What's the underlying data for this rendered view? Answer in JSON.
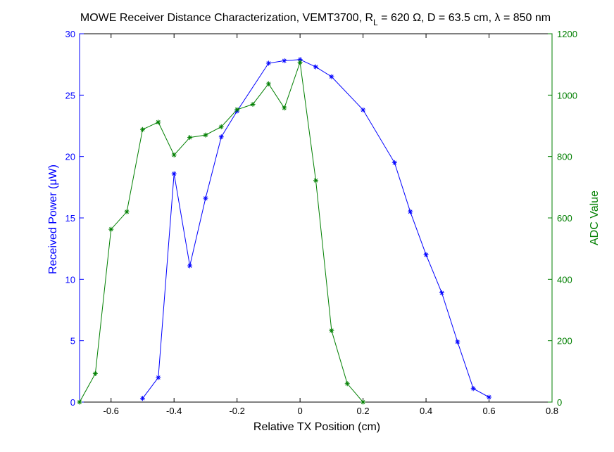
{
  "chart_data": {
    "type": "line",
    "title": {
      "prefix": "MOWE Receiver Distance Characterization, VEMT3700, R",
      "subscript": "L",
      "suffix": " = 620 Ω, D = 63.5 cm, λ = 850 nm"
    },
    "xlabel": "Relative TX Position (cm)",
    "ylabel_left": "Received Power (μW)",
    "ylabel_right": "ADC Value",
    "xlim": [
      -0.7,
      0.8
    ],
    "ylim_left": [
      0,
      30
    ],
    "ylim_right": [
      0,
      1200
    ],
    "xticks": [
      -0.6,
      -0.4,
      -0.2,
      0,
      0.2,
      0.4,
      0.6,
      0.8
    ],
    "xtick_labels": [
      "-0.6",
      "-0.4",
      "-0.2",
      "0",
      "0.2",
      "0.4",
      "0.6",
      "0.8"
    ],
    "yticks_left": [
      0,
      5,
      10,
      15,
      20,
      25,
      30
    ],
    "yticks_right": [
      0,
      200,
      400,
      600,
      800,
      1000,
      1200
    ],
    "grid": false,
    "series": [
      {
        "axis": "left",
        "color": "#0000ff",
        "marker": "asterisk",
        "x": [
          -0.5,
          -0.45,
          -0.4,
          -0.35,
          -0.3,
          -0.25,
          -0.2,
          -0.1,
          -0.05,
          0,
          0.05,
          0.1,
          0.2,
          0.3,
          0.35,
          0.4,
          0.45,
          0.5,
          0.55,
          0.6
        ],
        "y": [
          0.3,
          2.0,
          18.6,
          11.1,
          16.6,
          21.6,
          23.7,
          27.6,
          27.8,
          27.9,
          27.3,
          26.5,
          23.8,
          19.5,
          15.5,
          12.0,
          8.9,
          4.9,
          1.1,
          0.4
        ]
      },
      {
        "axis": "right",
        "color": "#007f00",
        "marker": "asterisk",
        "x": [
          -0.7,
          -0.65,
          -0.6,
          -0.55,
          -0.5,
          -0.45,
          -0.4,
          -0.35,
          -0.3,
          -0.25,
          -0.2,
          -0.15,
          -0.1,
          -0.05,
          0,
          0.05,
          0.1,
          0.15,
          0.2
        ],
        "y": [
          0,
          93,
          563,
          620,
          888,
          912,
          805,
          862,
          870,
          897,
          953,
          970,
          1037,
          958,
          1107,
          722,
          233,
          60,
          0
        ]
      }
    ]
  }
}
